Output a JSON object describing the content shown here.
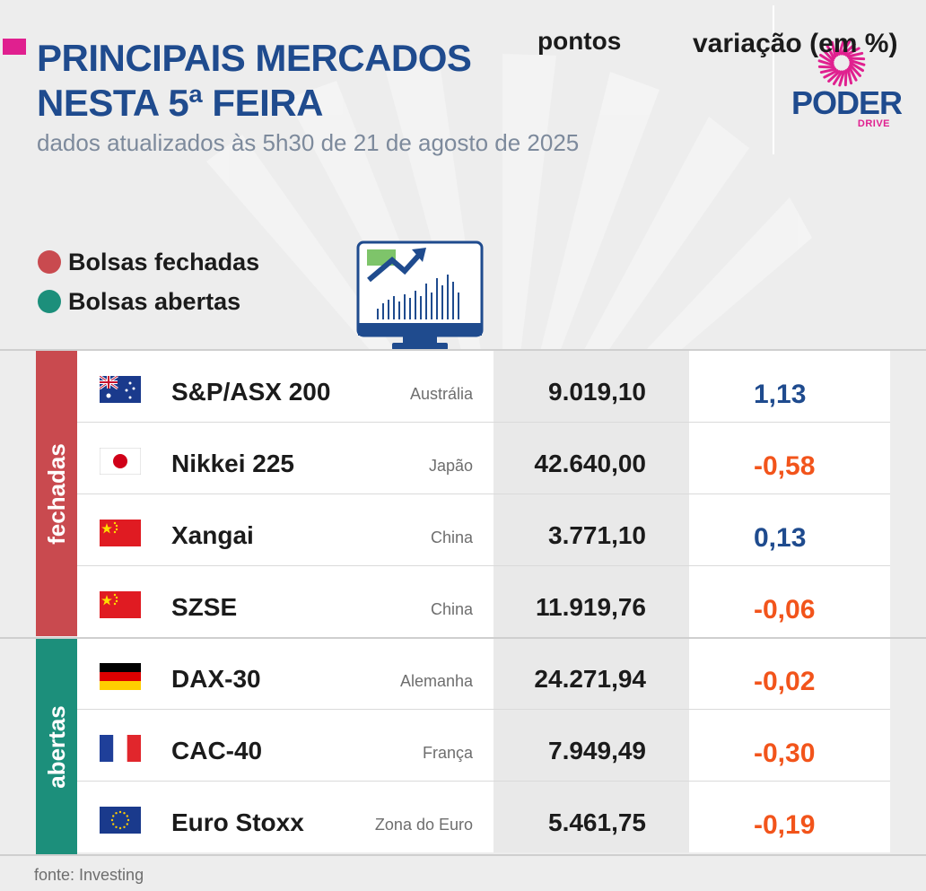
{
  "header": {
    "title_line1": "PRINCIPAIS MERCADOS",
    "title_line2": "NESTA 5ª FEIRA",
    "subtitle": "dados atualizados às 5h30 de 21 de agosto de 2025"
  },
  "logo": {
    "word": "PODER",
    "sub": "DRIVE",
    "brand_color": "#1f4b8e",
    "accent_color": "#e0208f"
  },
  "legend": {
    "closed": {
      "label": "Bolsas fechadas",
      "color": "#c94a4f"
    },
    "open": {
      "label": "Bolsas abertas",
      "color": "#1c8f7b"
    }
  },
  "columns": {
    "points": "pontos",
    "variation": "variação (em %)"
  },
  "groups": {
    "closed": "fechadas",
    "open": "abertas"
  },
  "rows": [
    {
      "flag": "australia-flag",
      "name": "S&P/ASX 200",
      "country": "Austrália",
      "points": "9.019,10",
      "variation": "1,13",
      "direction": "up"
    },
    {
      "flag": "japan-flag",
      "name": "Nikkei 225",
      "country": "Japão",
      "points": "42.640,00",
      "variation": "-0,58",
      "direction": "down"
    },
    {
      "flag": "china-flag",
      "name": "Xangai",
      "country": "China",
      "points": "3.771,10",
      "variation": "0,13",
      "direction": "up"
    },
    {
      "flag": "china-flag",
      "name": "SZSE",
      "country": "China",
      "points": "11.919,76",
      "variation": "-0,06",
      "direction": "down"
    },
    {
      "flag": "germany-flag",
      "name": "DAX-30",
      "country": "Alemanha",
      "points": "24.271,94",
      "variation": "-0,02",
      "direction": "down"
    },
    {
      "flag": "france-flag",
      "name": "CAC-40",
      "country": "França",
      "points": "7.949,49",
      "variation": "-0,30",
      "direction": "down"
    },
    {
      "flag": "eu-flag",
      "name": "Euro Stoxx",
      "country": "Zona do Euro",
      "points": "5.461,75",
      "variation": "-0,19",
      "direction": "down"
    }
  ],
  "colors": {
    "up": "#1f4b8e",
    "down": "#f2541b"
  },
  "footer": {
    "source": "fonte: Investing"
  }
}
